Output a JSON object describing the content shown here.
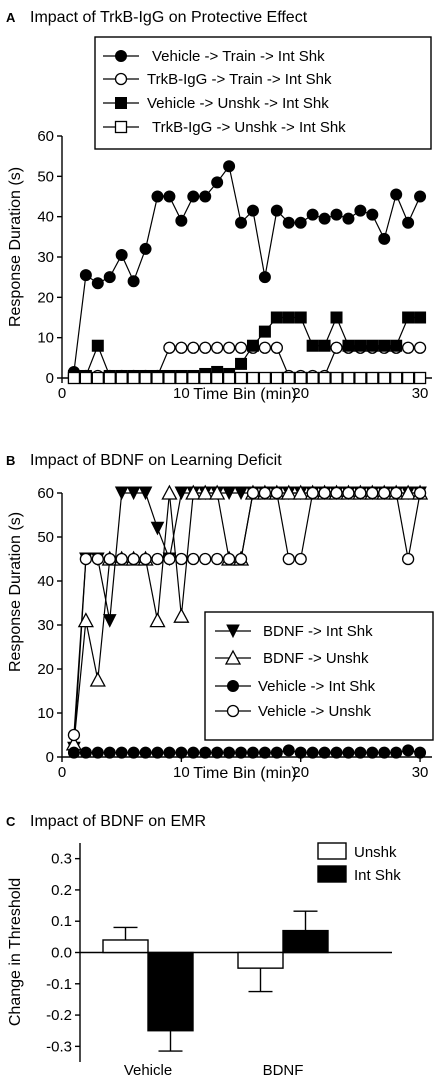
{
  "panels": [
    {
      "letter": "A",
      "title": "Impact of TrkB-IgG on Protective Effect",
      "xlabel": "Time Bin (min)",
      "ylabel": "Response Duration (s)",
      "xticks": [
        0,
        10,
        20,
        30
      ],
      "yticks": [
        0,
        10,
        20,
        30,
        40,
        50,
        60
      ]
    },
    {
      "letter": "B",
      "title": "Impact of BDNF on Learning Deficit",
      "xlabel": "Time Bin (min)",
      "ylabel": "Response Duration (s)",
      "xticks": [
        0,
        10,
        20,
        30
      ],
      "yticks": [
        0,
        10,
        20,
        30,
        40,
        50,
        60
      ]
    },
    {
      "letter": "C",
      "title": "Impact of BDNF on EMR",
      "xlabel": "",
      "ylabel": "Change in Threshold",
      "yticks": [
        "-0.3",
        "-0.2",
        "-0.1",
        "0.0",
        "0.1",
        "0.2",
        "0.3"
      ]
    }
  ],
  "chart_data": [
    {
      "type": "line",
      "title": "Impact of TrkB-IgG on Protective Effect",
      "xlabel": "Time Bin (min)",
      "ylabel": "Response Duration (s)",
      "xlim": [
        0,
        31
      ],
      "ylim": [
        0,
        60
      ],
      "legend_position": "top",
      "x": [
        1,
        2,
        3,
        4,
        5,
        6,
        7,
        8,
        9,
        10,
        11,
        12,
        13,
        14,
        15,
        16,
        17,
        18,
        19,
        20,
        21,
        22,
        23,
        24,
        25,
        26,
        27,
        28,
        29,
        30
      ],
      "series": [
        {
          "name": "Vehicle -> Train -> Int Shk",
          "marker": "circle-filled",
          "values": [
            1.5,
            25.5,
            23.5,
            25,
            30.5,
            24,
            32,
            45,
            45,
            39,
            45,
            45,
            48.5,
            52.5,
            38.5,
            41.5,
            25,
            41.5,
            38.5,
            38.5,
            40.5,
            39.5,
            40.5,
            39.5,
            41.5,
            40.5,
            34.5,
            45.5,
            38.5,
            45
          ]
        },
        {
          "name": "TrkB-IgG -> Train -> Int Shk",
          "marker": "circle-open",
          "values": [
            0.5,
            0.5,
            0.5,
            0.5,
            0.5,
            0.5,
            0.5,
            0.5,
            7.5,
            7.5,
            7.5,
            7.5,
            7.5,
            7.5,
            7.5,
            7.5,
            7.5,
            7.5,
            0.5,
            0.5,
            0.5,
            0.5,
            7.5,
            7.5,
            7.5,
            7.5,
            7.5,
            7.5,
            7.5,
            7.5
          ]
        },
        {
          "name": "Vehicle -> Unshk -> Int Shk",
          "marker": "square-filled",
          "values": [
            0.5,
            0.5,
            8,
            0.5,
            0.5,
            0.5,
            0.5,
            0.5,
            0.5,
            0.5,
            0.5,
            1,
            1.5,
            1,
            3.5,
            8,
            11.5,
            15,
            15,
            15,
            8,
            8,
            15,
            8,
            8,
            8,
            8,
            8,
            15,
            15
          ]
        },
        {
          "name": "TrkB-IgG -> Unshk -> Int Shk",
          "marker": "square-open",
          "values": [
            0,
            0,
            0,
            0,
            0,
            0,
            0,
            0,
            0,
            0,
            0,
            0,
            0,
            0,
            0,
            0,
            0,
            0,
            0,
            0,
            0,
            0,
            0,
            0,
            0,
            0,
            0,
            0,
            0,
            0
          ]
        }
      ]
    },
    {
      "type": "line",
      "title": "Impact of BDNF on Learning Deficit",
      "xlabel": "Time Bin (min)",
      "ylabel": "Response Duration (s)",
      "xlim": [
        0,
        31
      ],
      "ylim": [
        0,
        60
      ],
      "legend_position": "bottom-right",
      "x": [
        1,
        2,
        3,
        4,
        5,
        6,
        7,
        8,
        9,
        10,
        11,
        12,
        13,
        14,
        15,
        16,
        17,
        18,
        19,
        20,
        21,
        22,
        23,
        24,
        25,
        26,
        27,
        28,
        29,
        30
      ],
      "series": [
        {
          "name": "BDNF -> Int Shk",
          "marker": "triangle-down-filled",
          "values": [
            2,
            45,
            45,
            31,
            60,
            60,
            60,
            52,
            45,
            60,
            60,
            60,
            60,
            60,
            60,
            60,
            60,
            60,
            60,
            60,
            60,
            60,
            60,
            60,
            60,
            60,
            60,
            60,
            60,
            60
          ]
        },
        {
          "name": "BDNF -> Unshk",
          "marker": "triangle-up-open",
          "values": [
            3,
            31,
            17.5,
            45,
            45,
            45,
            45,
            31,
            60,
            32,
            60,
            60,
            60,
            45,
            45,
            60,
            60,
            60,
            60,
            60,
            60,
            60,
            60,
            60,
            60,
            60,
            60,
            60,
            60,
            60
          ]
        },
        {
          "name": "Vehicle -> Int Shk",
          "marker": "circle-filled",
          "values": [
            1,
            1,
            1,
            1,
            1,
            1,
            1,
            1,
            1,
            1,
            1,
            1,
            1,
            1,
            1,
            1,
            1,
            1,
            1.5,
            1,
            1,
            1,
            1,
            1,
            1,
            1,
            1,
            1,
            1.5,
            1
          ]
        },
        {
          "name": "Vehicle -> Unshk",
          "marker": "circle-open",
          "values": [
            5,
            45,
            45,
            45,
            45,
            45,
            45,
            45,
            45,
            45,
            45,
            45,
            45,
            45,
            45,
            60,
            60,
            60,
            45,
            45,
            60,
            60,
            60,
            60,
            60,
            60,
            60,
            60,
            45,
            60
          ]
        }
      ]
    },
    {
      "type": "bar",
      "title": "Impact of BDNF on EMR",
      "xlabel": "",
      "ylabel": "Change in Threshold",
      "ylim": [
        -0.35,
        0.35
      ],
      "legend_position": "top-right",
      "categories": [
        "Vehicle",
        "BDNF"
      ],
      "series": [
        {
          "name": "Unshk",
          "color": "#ffffff",
          "values": [
            0.04,
            -0.05
          ],
          "errors": [
            0.04,
            0.075
          ]
        },
        {
          "name": "Int Shk",
          "color": "#000000",
          "values": [
            -0.25,
            0.07
          ],
          "errors": [
            0.065,
            0.062
          ]
        }
      ]
    }
  ]
}
